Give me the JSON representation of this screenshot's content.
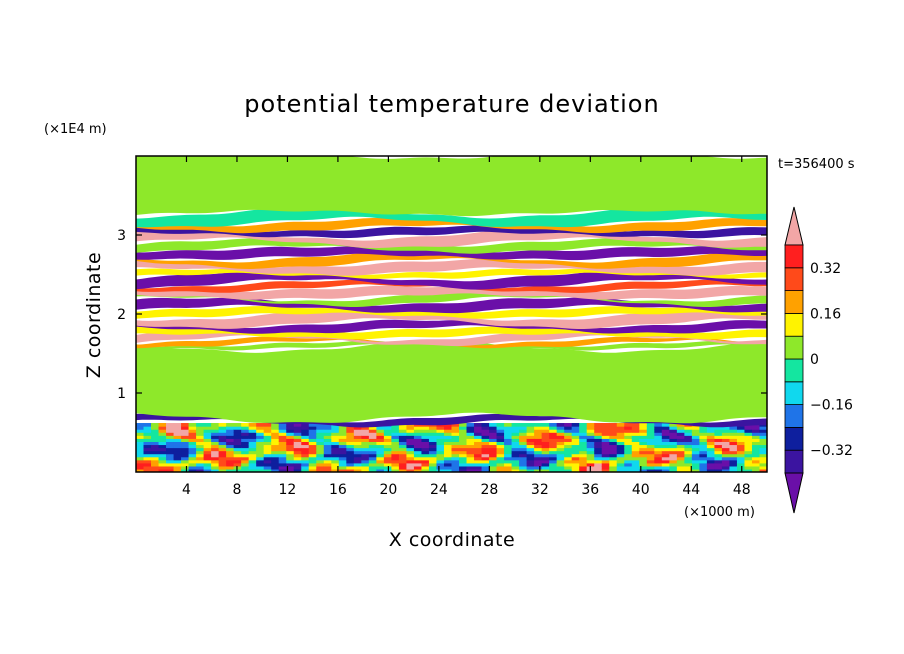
{
  "chart_data": {
    "type": "heatmap",
    "title": "potential temperature deviation",
    "time_label": "t=356400 s",
    "xlabel": "X coordinate",
    "ylabel": "Z coordinate",
    "x_unit": "(×1000 m)",
    "y_unit": "(×1E4 m)",
    "xlim": [
      0,
      50
    ],
    "ylim": [
      0,
      4
    ],
    "x_ticks": [
      4,
      8,
      12,
      16,
      20,
      24,
      28,
      32,
      36,
      40,
      44,
      48
    ],
    "y_ticks": [
      1,
      2,
      3
    ],
    "colorbar": {
      "levels": [
        -0.4,
        -0.32,
        -0.24,
        -0.16,
        -0.08,
        0,
        0.08,
        0.16,
        0.24,
        0.32,
        0.4
      ],
      "labels": [
        "0.32",
        "0.16",
        "0",
        "−0.16",
        "−0.32"
      ],
      "label_values": [
        0.32,
        0.16,
        0,
        -0.16,
        -0.32
      ],
      "colors": [
        "#6a0fa8",
        "#3b14a0",
        "#0e1f9e",
        "#1f74e8",
        "#10d8ee",
        "#14e6a0",
        "#8ee82a",
        "#fff300",
        "#ffa100",
        "#ff4a1a",
        "#ff1f1f",
        "#f2a6a6"
      ],
      "extend": "both"
    },
    "bands": [
      {
        "z": [
          0.0,
          0.62
        ],
        "pattern": "turbulent"
      },
      {
        "z": [
          0.62,
          0.68
        ],
        "value": -0.36
      },
      {
        "z": [
          0.68,
          1.58
        ],
        "value": 0.02
      },
      {
        "z": [
          1.58,
          1.62
        ],
        "value": 0.06
      },
      {
        "z": [
          1.62,
          1.66
        ],
        "value": 0.2
      },
      {
        "z": [
          1.66,
          1.72
        ],
        "value": 0.45
      },
      {
        "z": [
          1.72,
          1.8
        ],
        "value": 0.14
      },
      {
        "z": [
          1.8,
          1.88
        ],
        "value": -0.42
      },
      {
        "z": [
          1.88,
          1.98
        ],
        "value": 0.45
      },
      {
        "z": [
          1.98,
          2.06
        ],
        "value": 0.1
      },
      {
        "z": [
          2.06,
          2.16
        ],
        "value": -0.42
      },
      {
        "z": [
          2.16,
          2.22
        ],
        "value": 0.05
      },
      {
        "z": [
          2.22,
          2.32
        ],
        "value": 0.45
      },
      {
        "z": [
          2.32,
          2.38
        ],
        "value": 0.28
      },
      {
        "z": [
          2.38,
          2.48
        ],
        "value": -0.42
      },
      {
        "z": [
          2.48,
          2.54
        ],
        "value": 0.12
      },
      {
        "z": [
          2.54,
          2.64
        ],
        "value": 0.45
      },
      {
        "z": [
          2.64,
          2.72
        ],
        "value": 0.2
      },
      {
        "z": [
          2.72,
          2.82
        ],
        "value": -0.42
      },
      {
        "z": [
          2.82,
          2.9
        ],
        "value": 0.06
      },
      {
        "z": [
          2.9,
          3.0
        ],
        "value": 0.45
      },
      {
        "z": [
          3.0,
          3.08
        ],
        "value": -0.36
      },
      {
        "z": [
          3.08,
          3.16
        ],
        "value": 0.16
      },
      {
        "z": [
          3.16,
          3.28
        ],
        "value": -0.02
      },
      {
        "z": [
          3.28,
          4.0
        ],
        "value": 0.03
      }
    ]
  }
}
